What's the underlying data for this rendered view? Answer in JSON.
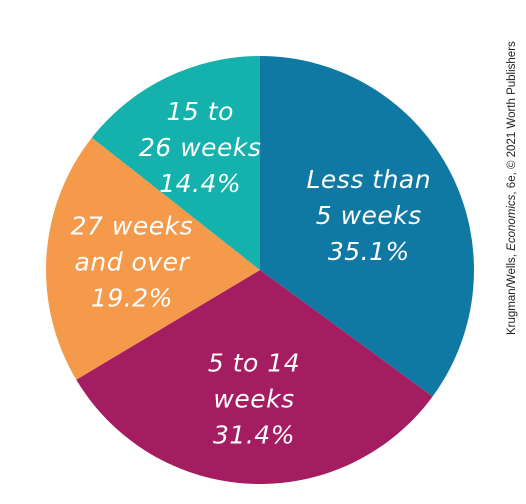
{
  "chart_data": {
    "type": "pie",
    "title": "",
    "categories": [
      "Less than 5 weeks",
      "5 to 14 weeks",
      "27 weeks and over",
      "15 to 26 weeks"
    ],
    "values": [
      35.1,
      31.4,
      19.2,
      14.4
    ],
    "slice_labels": [
      [
        "Less than",
        "5 weeks",
        "35.1%"
      ],
      [
        "5 to 14",
        "weeks",
        "31.4%"
      ],
      [
        "27 weeks",
        "and over",
        "19.2%"
      ],
      [
        "15 to",
        "26 weeks",
        "14.4%"
      ]
    ],
    "colors": [
      "#0f79a3",
      "#a51d61",
      "#f59a4b",
      "#14b1ad"
    ],
    "start": "12 o'clock",
    "direction": "clockwise"
  },
  "credit": {
    "prefix": "Krugman/Wells, ",
    "book": "Economics",
    "suffix": ", 6e, © 2021 Worth Publishers"
  }
}
